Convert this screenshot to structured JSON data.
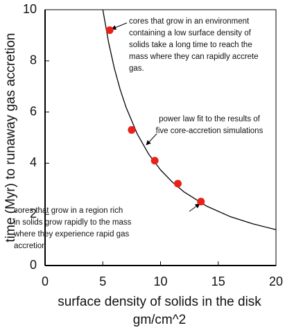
{
  "chart_data": {
    "type": "scatter",
    "xlabel": [
      "surface density of solids in the disk",
      "gm/cm^2"
    ],
    "ylabel": "time (Myr) to  runaway gas accretion",
    "xlim": [
      0,
      20
    ],
    "ylim": [
      0,
      10
    ],
    "xticks": [
      0,
      5,
      10,
      15,
      20
    ],
    "yticks": [
      0,
      2,
      4,
      6,
      8,
      10
    ],
    "series": [
      {
        "color": "#e8211b",
        "x": [
          5.6,
          7.5,
          9.5,
          11.5,
          13.5
        ],
        "values": [
          9.2,
          5.3,
          4.1,
          3.2,
          2.5
        ]
      },
      {
        "color": "#000000",
        "x": [
          5,
          5.5,
          6,
          6.5,
          7,
          8,
          9,
          10,
          11,
          12,
          14,
          16,
          18,
          20
        ],
        "values": [
          10.0,
          8.72,
          7.71,
          6.89,
          6.2,
          5.13,
          4.34,
          3.74,
          3.27,
          2.89,
          2.32,
          1.92,
          1.63,
          1.4
        ]
      }
    ],
    "annotations": [
      {
        "lines": [
          "cores that grow in an environment",
          "containing a low surface density of",
          "solids take a long time to reach the",
          "mass where they can rapidly accrete",
          "gas."
        ]
      },
      {
        "lines": [
          "power law fit to the results of",
          "five core-accretion simulations"
        ]
      },
      {
        "lines": [
          "cores that grow in a region rich",
          "in solids grow rapidly to the mass",
          "where they experience rapid gas",
          "accretion"
        ]
      }
    ]
  }
}
